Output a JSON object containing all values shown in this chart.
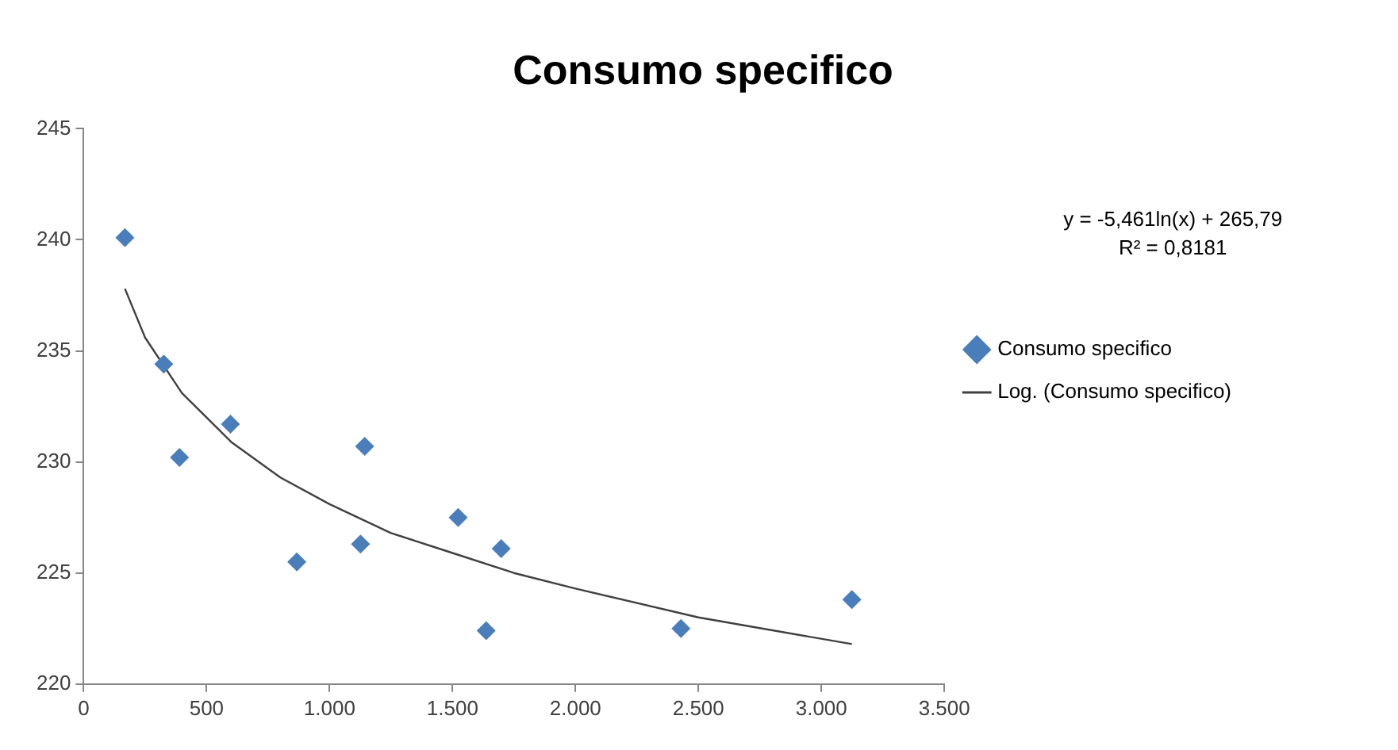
{
  "chart_data": {
    "type": "scatter",
    "title": "Consumo specifico",
    "series": [
      {
        "name": "Consumo specifico",
        "type": "scatter",
        "color": "#4a7ebb",
        "marker": "diamond",
        "x": [
          168,
          326,
          390,
          597,
          867,
          1126,
          1143,
          1523,
          1698,
          1637,
          2429,
          3124
        ],
        "values": [
          240.1,
          234.4,
          230.2,
          231.7,
          225.5,
          226.3,
          230.7,
          227.5,
          226.1,
          222.4,
          222.5,
          223.8
        ]
      },
      {
        "name": "Log. (Consumo specifico)",
        "type": "line",
        "color": "#404040",
        "marker": "none",
        "x": [
          168,
          250,
          400,
          600,
          800,
          1000,
          1250,
          1500,
          1750,
          2000,
          2500,
          3124
        ],
        "values": [
          237.8,
          235.6,
          233.1,
          230.9,
          229.3,
          228.1,
          226.8,
          225.9,
          225.0,
          224.3,
          223.0,
          221.8
        ]
      }
    ],
    "xlim": [
      0,
      3500
    ],
    "xticks": [
      0,
      500,
      {
        "value": 1000,
        "label": "1.000"
      },
      {
        "value": 1500,
        "label": "1.500"
      },
      {
        "value": 2000,
        "label": "2.000"
      },
      {
        "value": 2500,
        "label": "2.500"
      },
      {
        "value": 3000,
        "label": "3.000"
      },
      {
        "value": 3500,
        "label": "3.500"
      }
    ],
    "ylim": [
      220,
      245
    ],
    "yticks": [
      220,
      225,
      230,
      235,
      240,
      245
    ],
    "grid": false,
    "legend": "right",
    "annotations": [
      "y = -5,461ln(x) + 265,79",
      "R² = 0,8181"
    ]
  }
}
